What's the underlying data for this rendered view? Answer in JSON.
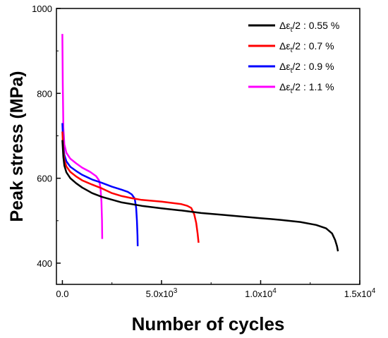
{
  "chart_data": {
    "type": "line",
    "xlabel": "Number of cycles",
    "ylabel": "Peak stress (MPa)",
    "xlim": [
      -300,
      15000
    ],
    "ylim": [
      350,
      1000
    ],
    "xticks": [
      {
        "value": 0,
        "label": "0.0"
      },
      {
        "value": 5000,
        "label": "5.0x10",
        "exp": "3"
      },
      {
        "value": 10000,
        "label": "1.0x10",
        "exp": "4"
      },
      {
        "value": 15000,
        "label": "1.5x10",
        "exp": "4"
      }
    ],
    "yticks": [
      {
        "value": 400,
        "label": "400"
      },
      {
        "value": 600,
        "label": "600"
      },
      {
        "value": 800,
        "label": "800"
      },
      {
        "value": 1000,
        "label": "1000"
      }
    ],
    "legend_position": "top-right",
    "series": [
      {
        "name": "Δεt/2 : 0.55 %",
        "legend": {
          "pre": "Δε",
          "sub": "t",
          "post": "/2 : 0.55 %"
        },
        "color": "#000000",
        "points": [
          [
            0,
            690
          ],
          [
            50,
            650
          ],
          [
            100,
            630
          ],
          [
            200,
            614
          ],
          [
            400,
            600
          ],
          [
            700,
            588
          ],
          [
            1000,
            578
          ],
          [
            1500,
            565
          ],
          [
            2000,
            556
          ],
          [
            3000,
            543
          ],
          [
            4000,
            535
          ],
          [
            5000,
            529
          ],
          [
            6000,
            524
          ],
          [
            7000,
            518
          ],
          [
            8000,
            514
          ],
          [
            9000,
            510
          ],
          [
            10000,
            506
          ],
          [
            11000,
            502
          ],
          [
            12000,
            497
          ],
          [
            12800,
            490
          ],
          [
            13300,
            482
          ],
          [
            13600,
            470
          ],
          [
            13750,
            455
          ],
          [
            13850,
            440
          ],
          [
            13900,
            428
          ]
        ]
      },
      {
        "name": "Δεt/2 : 0.7 %",
        "legend": {
          "pre": "Δε",
          "sub": "t",
          "post": "/2 : 0.7 %"
        },
        "color": "#ff0000",
        "points": [
          [
            0,
            710
          ],
          [
            50,
            665
          ],
          [
            100,
            643
          ],
          [
            200,
            628
          ],
          [
            400,
            615
          ],
          [
            700,
            604
          ],
          [
            1000,
            595
          ],
          [
            1500,
            585
          ],
          [
            2000,
            576
          ],
          [
            2500,
            565
          ],
          [
            3000,
            558
          ],
          [
            3500,
            553
          ],
          [
            4000,
            549
          ],
          [
            4500,
            547
          ],
          [
            5000,
            545
          ],
          [
            5500,
            542
          ],
          [
            6000,
            539
          ],
          [
            6300,
            535
          ],
          [
            6500,
            530
          ],
          [
            6650,
            515
          ],
          [
            6750,
            495
          ],
          [
            6820,
            470
          ],
          [
            6870,
            448
          ]
        ]
      },
      {
        "name": "Δεt/2 : 0.9 %",
        "legend": {
          "pre": "Δε",
          "sub": "t",
          "post": "/2 : 0.9 %"
        },
        "color": "#0000ff",
        "points": [
          [
            0,
            730
          ],
          [
            50,
            675
          ],
          [
            100,
            655
          ],
          [
            200,
            640
          ],
          [
            400,
            627
          ],
          [
            700,
            617
          ],
          [
            1000,
            608
          ],
          [
            1500,
            597
          ],
          [
            2000,
            589
          ],
          [
            2500,
            580
          ],
          [
            3000,
            573
          ],
          [
            3300,
            568
          ],
          [
            3500,
            562
          ],
          [
            3650,
            552
          ],
          [
            3720,
            530
          ],
          [
            3760,
            500
          ],
          [
            3790,
            465
          ],
          [
            3800,
            440
          ]
        ]
      },
      {
        "name": "Δεt/2 : 1.1 %",
        "legend": {
          "pre": "Δε",
          "sub": "t",
          "post": "/2 : 1.1 %"
        },
        "color": "#ff00ff",
        "points": [
          [
            0,
            940
          ],
          [
            20,
            820
          ],
          [
            50,
            720
          ],
          [
            100,
            680
          ],
          [
            200,
            660
          ],
          [
            400,
            646
          ],
          [
            700,
            635
          ],
          [
            1000,
            625
          ],
          [
            1400,
            615
          ],
          [
            1700,
            605
          ],
          [
            1850,
            595
          ],
          [
            1920,
            578
          ],
          [
            1970,
            545
          ],
          [
            2000,
            500
          ],
          [
            2010,
            457
          ]
        ]
      }
    ]
  }
}
